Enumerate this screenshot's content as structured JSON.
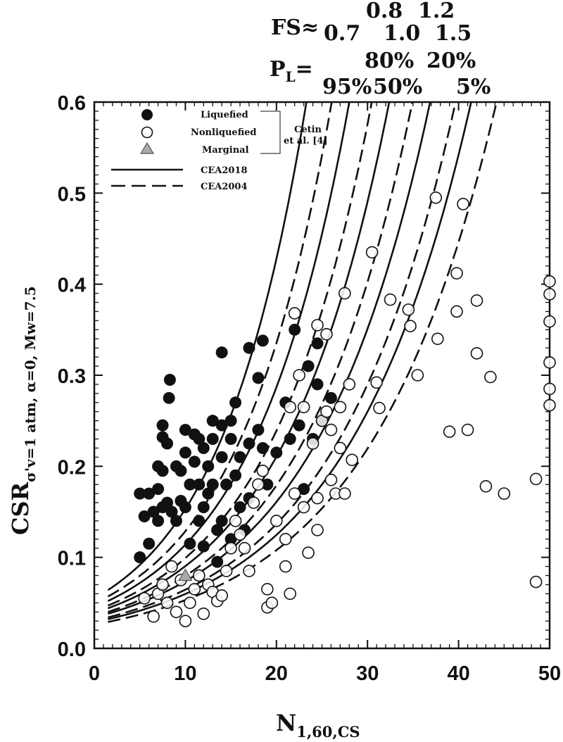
{
  "header": {
    "fs_label": "FS≈",
    "fs_values": [
      "0.8",
      "1.2",
      "0.7",
      "1.0",
      "1.5"
    ],
    "pl_label": "P",
    "pl_sub": "L",
    "pl_eq": "=",
    "pl_values": [
      "80%",
      "20%",
      "95%",
      "50%",
      "5%"
    ]
  },
  "chart_data": {
    "type": "scatter",
    "xlabel": "N",
    "xlabel_sub": "1,60,CS",
    "ylabel": "CSR",
    "ylabel_sub": "σ'v=1 atm, α=0, Mw=7.5",
    "xlim": [
      0,
      50
    ],
    "ylim": [
      0.0,
      0.6
    ],
    "xticks": [
      "0",
      "10",
      "20",
      "30",
      "40",
      "50"
    ],
    "yticks": [
      "0.0",
      "0.1",
      "0.2",
      "0.3",
      "0.4",
      "0.5",
      "0.6"
    ],
    "grid": false,
    "legend": {
      "placement": "top-left",
      "items": [
        "Liquefied",
        "Nonliquefied",
        "Marginal",
        "CEA2018",
        "CEA2004"
      ],
      "source": [
        "Cetin",
        "et al. [4]"
      ]
    },
    "curves": {
      "CEA2018": [
        {
          "label": "95%",
          "k": 0.064,
          "r": 0.1027
        },
        {
          "label": "80%",
          "k": 0.052,
          "r": 0.0923
        },
        {
          "label": "50%",
          "k": 0.044,
          "r": 0.0846
        },
        {
          "label": "20%",
          "k": 0.038,
          "r": 0.078
        },
        {
          "label": "5%",
          "k": 0.032,
          "r": 0.0735
        }
      ],
      "CEA2004": [
        {
          "label": "95%",
          "k": 0.057,
          "r": 0.0958
        },
        {
          "label": "80%",
          "k": 0.047,
          "r": 0.0879
        },
        {
          "label": "50%",
          "k": 0.04,
          "r": 0.081
        },
        {
          "label": "20%",
          "k": 0.034,
          "r": 0.0752
        },
        {
          "label": "5%",
          "k": 0.029,
          "r": 0.071
        }
      ]
    },
    "series": [
      {
        "name": "Liquefied",
        "points": [
          [
            5,
            0.17
          ],
          [
            5,
            0.1
          ],
          [
            5.5,
            0.145
          ],
          [
            6,
            0.17
          ],
          [
            6,
            0.115
          ],
          [
            6.5,
            0.15
          ],
          [
            7,
            0.2
          ],
          [
            7,
            0.175
          ],
          [
            7,
            0.14
          ],
          [
            7.5,
            0.245
          ],
          [
            7.5,
            0.232
          ],
          [
            7.5,
            0.195
          ],
          [
            7.5,
            0.155
          ],
          [
            8,
            0.225
          ],
          [
            8,
            0.16
          ],
          [
            8.2,
            0.275
          ],
          [
            8.3,
            0.295
          ],
          [
            8.5,
            0.15
          ],
          [
            9,
            0.2
          ],
          [
            9,
            0.14
          ],
          [
            9.5,
            0.195
          ],
          [
            9.5,
            0.162
          ],
          [
            10,
            0.24
          ],
          [
            10,
            0.215
          ],
          [
            10,
            0.155
          ],
          [
            10.5,
            0.18
          ],
          [
            10.5,
            0.115
          ],
          [
            11,
            0.235
          ],
          [
            11,
            0.205
          ],
          [
            11.5,
            0.23
          ],
          [
            11.5,
            0.18
          ],
          [
            11.5,
            0.14
          ],
          [
            12,
            0.22
          ],
          [
            12,
            0.155
          ],
          [
            12,
            0.112
          ],
          [
            12.5,
            0.2
          ],
          [
            12.5,
            0.17
          ],
          [
            13,
            0.25
          ],
          [
            13,
            0.23
          ],
          [
            13,
            0.18
          ],
          [
            13.5,
            0.13
          ],
          [
            13.5,
            0.095
          ],
          [
            14,
            0.325
          ],
          [
            14,
            0.245
          ],
          [
            14,
            0.21
          ],
          [
            14,
            0.14
          ],
          [
            14.5,
            0.18
          ],
          [
            15,
            0.25
          ],
          [
            15,
            0.23
          ],
          [
            15,
            0.12
          ],
          [
            15.5,
            0.27
          ],
          [
            15.5,
            0.19
          ],
          [
            16,
            0.21
          ],
          [
            16,
            0.155
          ],
          [
            16.5,
            0.13
          ],
          [
            17,
            0.33
          ],
          [
            17,
            0.225
          ],
          [
            17,
            0.165
          ],
          [
            18,
            0.297
          ],
          [
            18,
            0.24
          ],
          [
            18.5,
            0.338
          ],
          [
            18.5,
            0.22
          ],
          [
            19,
            0.18
          ],
          [
            20,
            0.215
          ],
          [
            21,
            0.27
          ],
          [
            21.5,
            0.23
          ],
          [
            22,
            0.35
          ],
          [
            22.5,
            0.245
          ],
          [
            23,
            0.175
          ],
          [
            23.5,
            0.31
          ],
          [
            24,
            0.23
          ],
          [
            24.5,
            0.335
          ],
          [
            24.5,
            0.29
          ],
          [
            25,
            0.25
          ],
          [
            26,
            0.275
          ]
        ]
      },
      {
        "name": "Nonliquefied",
        "points": [
          [
            5.5,
            0.055
          ],
          [
            6.5,
            0.035
          ],
          [
            7,
            0.06
          ],
          [
            7.5,
            0.07
          ],
          [
            8,
            0.05
          ],
          [
            8.5,
            0.09
          ],
          [
            9,
            0.04
          ],
          [
            9.5,
            0.075
          ],
          [
            10,
            0.03
          ],
          [
            10.5,
            0.05
          ],
          [
            11,
            0.065
          ],
          [
            11.5,
            0.08
          ],
          [
            12,
            0.038
          ],
          [
            12.5,
            0.07
          ],
          [
            13,
            0.062
          ],
          [
            13.5,
            0.052
          ],
          [
            14,
            0.058
          ],
          [
            14.5,
            0.085
          ],
          [
            15,
            0.11
          ],
          [
            15.5,
            0.14
          ],
          [
            16,
            0.125
          ],
          [
            16.5,
            0.11
          ],
          [
            17,
            0.085
          ],
          [
            17.5,
            0.16
          ],
          [
            18,
            0.18
          ],
          [
            18.5,
            0.195
          ],
          [
            19,
            0.065
          ],
          [
            19,
            0.045
          ],
          [
            19.5,
            0.05
          ],
          [
            20,
            0.14
          ],
          [
            21,
            0.12
          ],
          [
            21,
            0.09
          ],
          [
            21.5,
            0.265
          ],
          [
            21.5,
            0.06
          ],
          [
            22,
            0.368
          ],
          [
            22,
            0.17
          ],
          [
            22.5,
            0.3
          ],
          [
            23,
            0.265
          ],
          [
            23,
            0.155
          ],
          [
            23.5,
            0.105
          ],
          [
            24,
            0.225
          ],
          [
            24.5,
            0.355
          ],
          [
            24.5,
            0.165
          ],
          [
            24.5,
            0.13
          ],
          [
            25,
            0.25
          ],
          [
            25.5,
            0.345
          ],
          [
            25.5,
            0.26
          ],
          [
            26,
            0.24
          ],
          [
            26,
            0.185
          ],
          [
            26.5,
            0.17
          ],
          [
            27,
            0.265
          ],
          [
            27,
            0.22
          ],
          [
            27.5,
            0.39
          ],
          [
            27.5,
            0.17
          ],
          [
            28,
            0.29
          ],
          [
            28.3,
            0.207
          ],
          [
            30.5,
            0.435
          ],
          [
            31,
            0.292
          ],
          [
            31.3,
            0.264
          ],
          [
            32.5,
            0.383
          ],
          [
            34.5,
            0.372
          ],
          [
            34.7,
            0.354
          ],
          [
            35.5,
            0.3
          ],
          [
            37.5,
            0.495
          ],
          [
            37.7,
            0.34
          ],
          [
            39,
            0.238
          ],
          [
            39.8,
            0.412
          ],
          [
            39.8,
            0.37
          ],
          [
            40.5,
            0.488
          ],
          [
            41,
            0.24
          ],
          [
            42,
            0.382
          ],
          [
            42,
            0.324
          ],
          [
            43,
            0.178
          ],
          [
            43.5,
            0.298
          ],
          [
            45,
            0.17
          ],
          [
            48.5,
            0.186
          ],
          [
            48.5,
            0.073
          ],
          [
            50,
            0.403
          ],
          [
            50,
            0.389
          ],
          [
            50,
            0.359
          ],
          [
            50,
            0.314
          ],
          [
            50,
            0.285
          ],
          [
            50,
            0.267
          ]
        ]
      },
      {
        "name": "Marginal",
        "points": [
          [
            10,
            0.08
          ]
        ]
      }
    ]
  }
}
